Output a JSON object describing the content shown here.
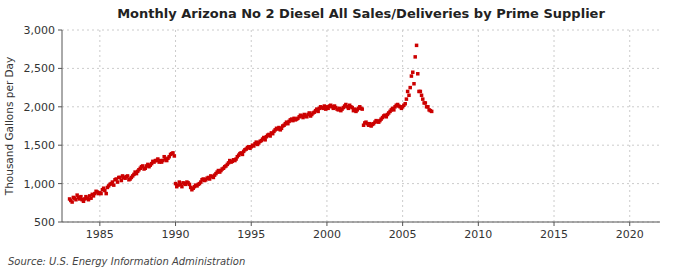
{
  "chart_data": {
    "type": "scatter",
    "title": "Monthly Arizona No 2 Diesel All Sales/Deliveries by Prime Supplier",
    "ylabel": "Thousand Gallons per Day",
    "source": "Source: U.S. Energy Information Administration",
    "color": "#cc0000",
    "marker": "square",
    "grid": true,
    "xlim": [
      1982.5,
      2022
    ],
    "ylim": [
      500,
      3000
    ],
    "xticks": [
      1985,
      1990,
      1995,
      2000,
      2005,
      2010,
      2015,
      2020
    ],
    "yticks": [
      500,
      {
        "value": 1000,
        "label": "1,000"
      },
      {
        "value": 1500,
        "label": "1,500"
      },
      {
        "value": 2000,
        "label": "2,000"
      },
      {
        "value": 2500,
        "label": "2,500"
      },
      {
        "value": 3000,
        "label": "3,000"
      }
    ],
    "x": [
      1983.0,
      1983.08,
      1983.17,
      1983.25,
      1983.33,
      1983.42,
      1983.5,
      1983.58,
      1983.67,
      1983.75,
      1983.83,
      1983.92,
      1984.0,
      1984.08,
      1984.17,
      1984.25,
      1984.33,
      1984.42,
      1984.5,
      1984.58,
      1984.67,
      1984.75,
      1984.83,
      1984.92,
      1985.0,
      1985.08,
      1985.17,
      1985.25,
      1985.33,
      1985.42,
      1985.5,
      1985.58,
      1985.67,
      1985.75,
      1985.83,
      1985.92,
      1986.0,
      1986.08,
      1986.17,
      1986.25,
      1986.33,
      1986.42,
      1986.5,
      1986.58,
      1986.67,
      1986.75,
      1986.83,
      1986.92,
      1987.0,
      1987.08,
      1987.17,
      1987.25,
      1987.33,
      1987.42,
      1987.5,
      1987.58,
      1987.67,
      1987.75,
      1987.83,
      1987.92,
      1988.0,
      1988.08,
      1988.17,
      1988.25,
      1988.33,
      1988.42,
      1988.5,
      1988.58,
      1988.67,
      1988.75,
      1988.83,
      1988.92,
      1989.0,
      1989.08,
      1989.17,
      1989.25,
      1989.33,
      1989.42,
      1989.5,
      1989.58,
      1989.67,
      1989.75,
      1989.83,
      1989.92,
      1990.0,
      1990.08,
      1990.17,
      1990.25,
      1990.33,
      1990.42,
      1990.5,
      1990.58,
      1990.67,
      1990.75,
      1990.83,
      1990.92,
      1991.0,
      1991.08,
      1991.17,
      1991.25,
      1991.33,
      1991.42,
      1991.5,
      1991.58,
      1991.67,
      1991.75,
      1991.83,
      1991.92,
      1992.0,
      1992.08,
      1992.17,
      1992.25,
      1992.33,
      1992.42,
      1992.5,
      1992.58,
      1992.67,
      1992.75,
      1992.83,
      1992.92,
      1993.0,
      1993.08,
      1993.17,
      1993.25,
      1993.33,
      1993.42,
      1993.5,
      1993.58,
      1993.67,
      1993.75,
      1993.83,
      1993.92,
      1994.0,
      1994.08,
      1994.17,
      1994.25,
      1994.33,
      1994.42,
      1994.5,
      1994.58,
      1994.67,
      1994.75,
      1994.83,
      1994.92,
      1995.0,
      1995.08,
      1995.17,
      1995.25,
      1995.33,
      1995.42,
      1995.5,
      1995.58,
      1995.67,
      1995.75,
      1995.83,
      1995.92,
      1996.0,
      1996.08,
      1996.17,
      1996.25,
      1996.33,
      1996.42,
      1996.5,
      1996.58,
      1996.67,
      1996.75,
      1996.83,
      1996.92,
      1997.0,
      1997.08,
      1997.17,
      1997.25,
      1997.33,
      1997.42,
      1997.5,
      1997.58,
      1997.67,
      1997.75,
      1997.83,
      1997.92,
      1998.0,
      1998.08,
      1998.17,
      1998.25,
      1998.33,
      1998.42,
      1998.5,
      1998.58,
      1998.67,
      1998.75,
      1998.83,
      1998.92,
      1999.0,
      1999.08,
      1999.17,
      1999.25,
      1999.33,
      1999.42,
      1999.5,
      1999.58,
      1999.67,
      1999.75,
      1999.83,
      1999.92,
      2000.0,
      2000.08,
      2000.17,
      2000.25,
      2000.33,
      2000.42,
      2000.5,
      2000.58,
      2000.67,
      2000.75,
      2000.83,
      2000.92,
      2001.0,
      2001.08,
      2001.17,
      2001.25,
      2001.33,
      2001.42,
      2001.5,
      2001.58,
      2001.67,
      2001.75,
      2001.83,
      2001.92,
      2002.0,
      2002.08,
      2002.17,
      2002.25,
      2002.33,
      2002.42,
      2002.5,
      2002.58,
      2002.67,
      2002.75,
      2002.83,
      2002.92,
      2003.0,
      2003.08,
      2003.17,
      2003.25,
      2003.33,
      2003.42,
      2003.5,
      2003.58,
      2003.67,
      2003.75,
      2003.83,
      2003.92,
      2004.0,
      2004.08,
      2004.17,
      2004.25,
      2004.33,
      2004.42,
      2004.5,
      2004.58,
      2004.67,
      2004.75,
      2004.83,
      2004.92,
      2005.0,
      2005.08,
      2005.17,
      2005.25,
      2005.33,
      2005.42,
      2005.5,
      2005.58,
      2005.67,
      2005.75,
      2005.83,
      2005.92,
      2006.0,
      2006.08,
      2006.17,
      2006.25,
      2006.33,
      2006.42,
      2006.5,
      2006.58,
      2006.67,
      2006.75,
      2006.83,
      2006.92
    ],
    "values": [
      800,
      780,
      760,
      820,
      810,
      790,
      850,
      820,
      800,
      830,
      790,
      770,
      800,
      830,
      810,
      790,
      840,
      810,
      860,
      840,
      870,
      900,
      890,
      870,
      880,
      870,
      920,
      940,
      910,
      870,
      950,
      970,
      990,
      1000,
      1020,
      980,
      1050,
      1060,
      1020,
      1080,
      1080,
      1040,
      1100,
      1080,
      1070,
      1090,
      1100,
      1050,
      1060,
      1080,
      1100,
      1120,
      1150,
      1130,
      1160,
      1180,
      1200,
      1220,
      1230,
      1190,
      1200,
      1230,
      1250,
      1220,
      1240,
      1260,
      1290,
      1280,
      1300,
      1300,
      1320,
      1280,
      1300,
      1280,
      1300,
      1350,
      1320,
      1300,
      1330,
      1350,
      1380,
      1390,
      1400,
      1360,
      1000,
      960,
      980,
      1020,
      990,
      960,
      1010,
      1000,
      990,
      1020,
      1010,
      990,
      950,
      920,
      940,
      960,
      980,
      970,
      990,
      1000,
      1020,
      1050,
      1060,
      1040,
      1050,
      1070,
      1080,
      1060,
      1100,
      1090,
      1080,
      1110,
      1130,
      1150,
      1170,
      1150,
      1170,
      1190,
      1200,
      1220,
      1230,
      1250,
      1270,
      1300,
      1280,
      1290,
      1310,
      1300,
      1320,
      1350,
      1370,
      1390,
      1400,
      1380,
      1420,
      1440,
      1450,
      1470,
      1480,
      1460,
      1480,
      1500,
      1490,
      1520,
      1540,
      1510,
      1530,
      1550,
      1560,
      1580,
      1600,
      1570,
      1610,
      1630,
      1640,
      1620,
      1660,
      1650,
      1680,
      1700,
      1720,
      1710,
      1730,
      1700,
      1720,
      1750,
      1760,
      1780,
      1800,
      1780,
      1810,
      1830,
      1840,
      1820,
      1850,
      1830,
      1840,
      1850,
      1870,
      1890,
      1880,
      1860,
      1900,
      1880,
      1870,
      1900,
      1920,
      1880,
      1900,
      1920,
      1930,
      1950,
      1970,
      1940,
      1980,
      2000,
      1990,
      1980,
      2010,
      1970,
      2000,
      1980,
      2010,
      2020,
      2000,
      1980,
      2010,
      1990,
      1970,
      1960,
      1980,
      1950,
      1970,
      1990,
      2010,
      2030,
      2000,
      1980,
      2020,
      2000,
      1990,
      1950,
      1970,
      1940,
      1960,
      1980,
      2000,
      1980,
      1970,
      1760,
      1790,
      1800,
      1780,
      1760,
      1780,
      1750,
      1770,
      1780,
      1800,
      1820,
      1810,
      1800,
      1820,
      1840,
      1860,
      1880,
      1890,
      1870,
      1900,
      1920,
      1940,
      1960,
      1980,
      1960,
      2000,
      2020,
      2030,
      2010,
      2000,
      1980,
      2000,
      2020,
      2040,
      2100,
      2200,
      2150,
      2250,
      2400,
      2450,
      2300,
      2650,
      2800,
      2430,
      2200,
      2200,
      2150,
      2100,
      2050,
      2050,
      2000,
      2000,
      1960,
      1950,
      1940
    ]
  }
}
